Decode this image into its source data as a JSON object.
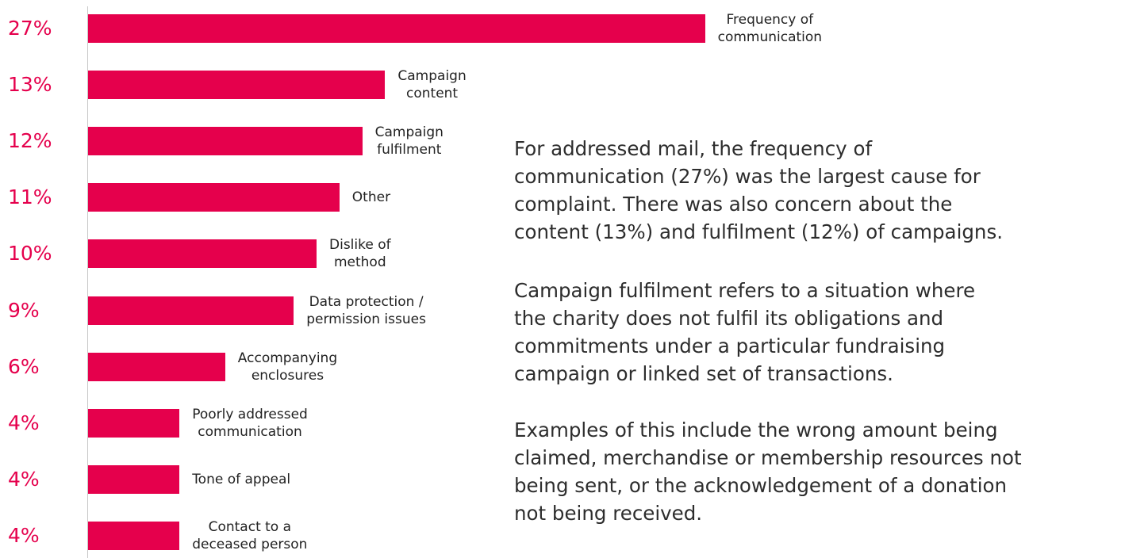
{
  "chart_data": {
    "type": "bar",
    "orientation": "horizontal",
    "color": "#e5004c",
    "categories": [
      "Frequency of\ncommunication",
      "Campaign\ncontent",
      "Campaign\nfulfilment",
      "Other",
      "Dislike of\nmethod",
      "Data protection /\npermission issues",
      "Accompanying\nenclosures",
      "Poorly addressed\ncommunication",
      "Tone of appeal",
      "Contact to a\ndeceased person"
    ],
    "values": [
      27,
      13,
      12,
      11,
      10,
      9,
      6,
      4,
      4,
      4
    ],
    "value_labels": [
      "27%",
      "13%",
      "12%",
      "11%",
      "10%",
      "9%",
      "6%",
      "4%",
      "4%",
      "4%"
    ]
  },
  "text": {
    "paragraphs": [
      "For addressed mail, the frequency of\ncommunication (27%) was the largest cause for\ncomplaint. There was also concern about the\ncontent (13%) and fulfilment (12%) of campaigns.",
      "Campaign fulfilment refers to a situation where\nthe charity does not fulfil its obligations and\ncommitments under a particular fundraising\ncampaign or linked set of transactions.",
      "Examples of this include the wrong amount being\nclaimed, merchandise or membership resources not\nbeing sent, or the acknowledgement of a donation\nnot being received."
    ]
  }
}
